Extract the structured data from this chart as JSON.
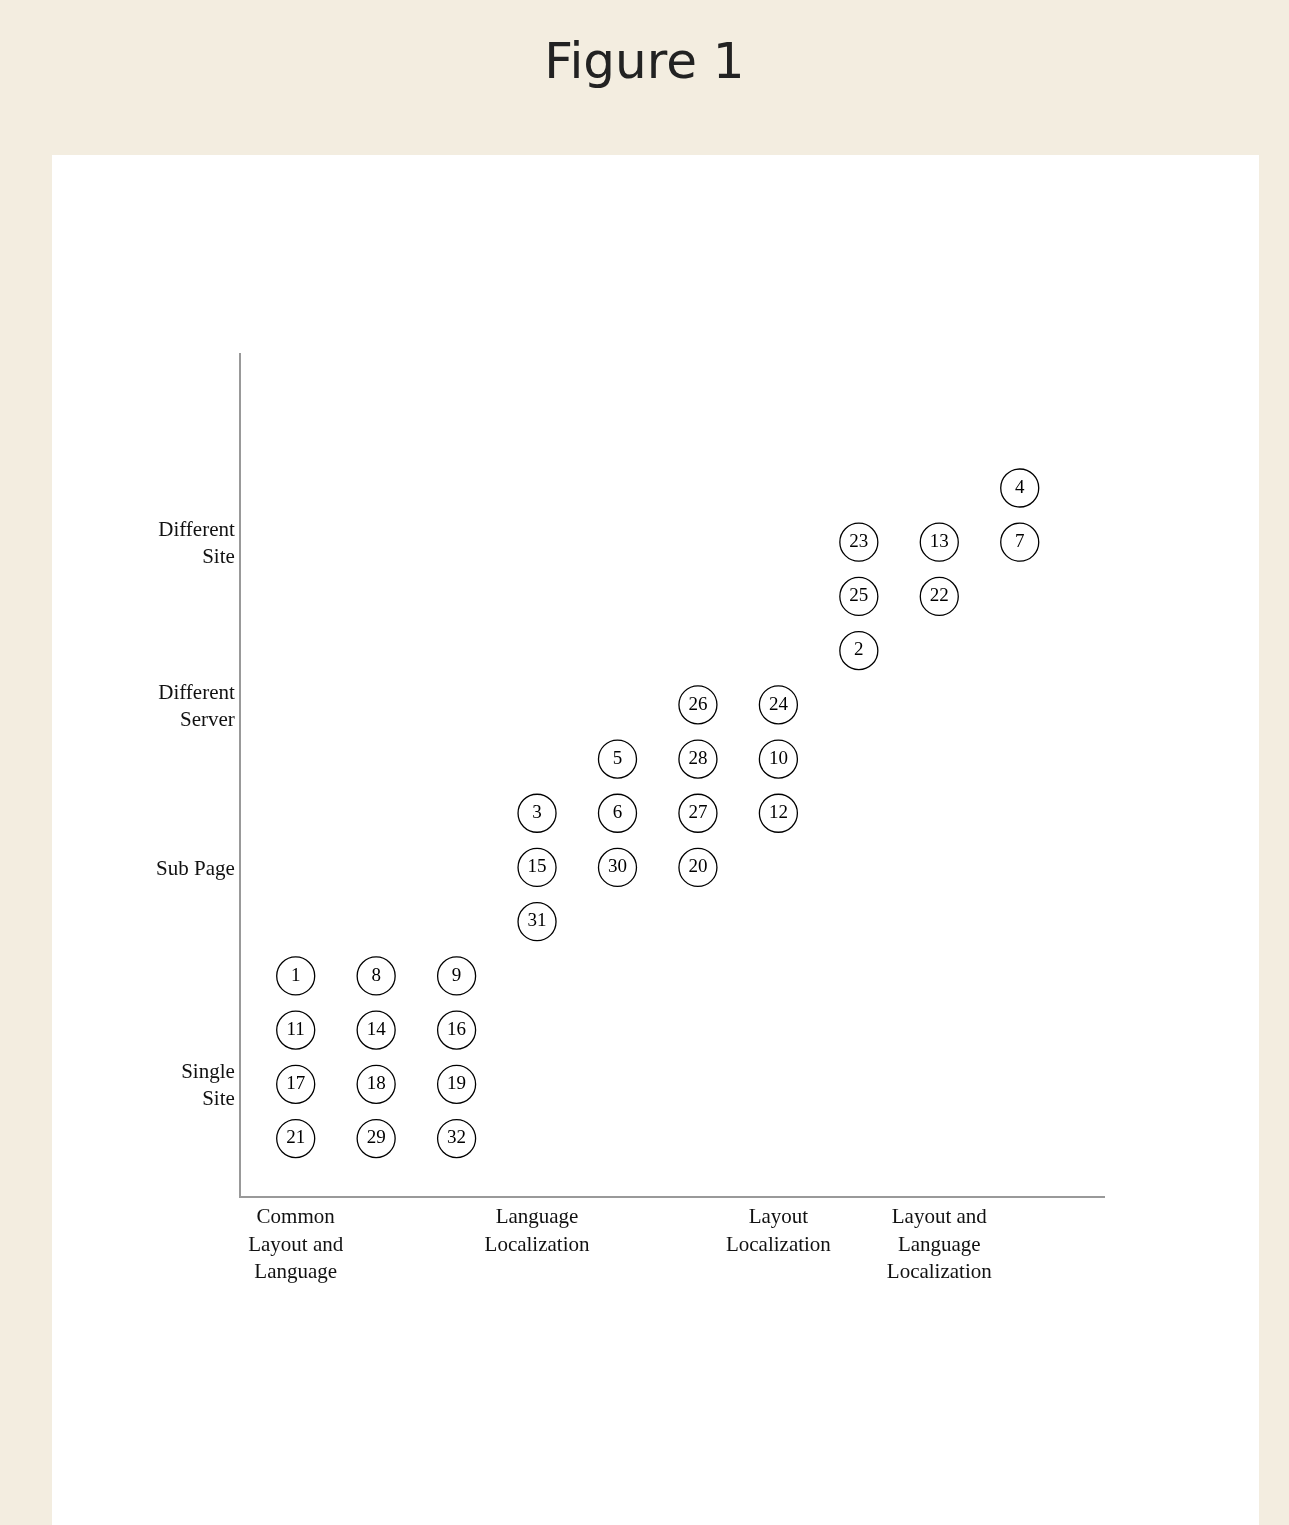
{
  "chart_data": {
    "type": "heatmap",
    "title": "Figure 1",
    "categories": [
      "Common\nLayout and\nLanguage",
      null,
      null,
      "Language\nLocalization",
      null,
      null,
      "Layout\nLocalization",
      null,
      "Layout and\nLanguage\nLocalization",
      null
    ],
    "y_categories": [
      null,
      "Different\nSite",
      null,
      null,
      "Different\nServer",
      null,
      null,
      "Sub Page",
      null,
      null,
      null,
      "Single\nSite",
      null
    ],
    "cells": [
      [
        null,
        null,
        null,
        null,
        null,
        null,
        null,
        null,
        null,
        4
      ],
      [
        null,
        null,
        null,
        null,
        null,
        null,
        null,
        23,
        13,
        7
      ],
      [
        null,
        null,
        null,
        null,
        null,
        null,
        null,
        25,
        22,
        null
      ],
      [
        null,
        null,
        null,
        null,
        null,
        null,
        null,
        2,
        null,
        null
      ],
      [
        null,
        null,
        null,
        null,
        null,
        26,
        24,
        null,
        null,
        null
      ],
      [
        null,
        null,
        null,
        null,
        5,
        28,
        10,
        null,
        null,
        null
      ],
      [
        null,
        null,
        null,
        3,
        6,
        27,
        12,
        null,
        null,
        null
      ],
      [
        null,
        null,
        null,
        15,
        30,
        20,
        null,
        null,
        null,
        null
      ],
      [
        null,
        null,
        null,
        31,
        null,
        null,
        null,
        null,
        null,
        null
      ],
      [
        1,
        8,
        9,
        null,
        null,
        null,
        null,
        null,
        null,
        null
      ],
      [
        11,
        14,
        16,
        null,
        null,
        null,
        null,
        null,
        null,
        null
      ],
      [
        17,
        18,
        19,
        null,
        null,
        null,
        null,
        null,
        null,
        null
      ],
      [
        21,
        29,
        32,
        null,
        null,
        null,
        null,
        null,
        null,
        null
      ]
    ],
    "data_labels": true
  }
}
